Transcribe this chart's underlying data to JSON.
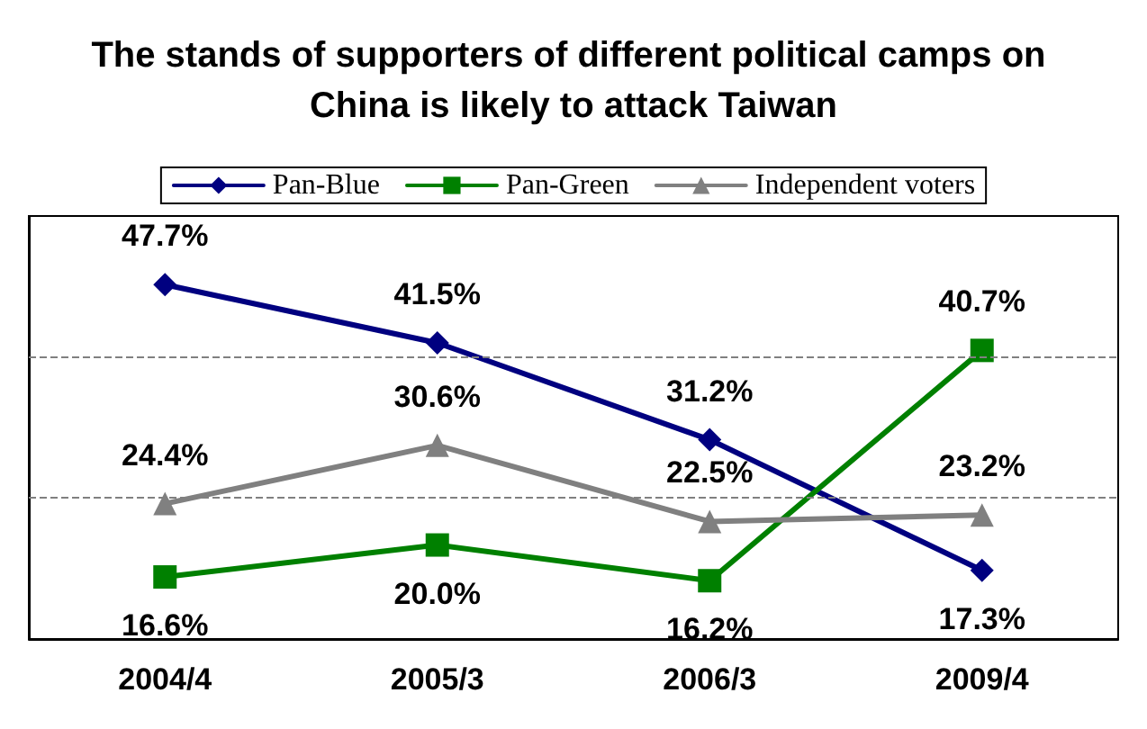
{
  "chart_data": {
    "type": "line",
    "title": "The stands of supporters of different political camps on China is likely to attack Taiwan",
    "categories": [
      "2004/4",
      "2005/3",
      "2006/3",
      "2009/4"
    ],
    "series": [
      {
        "name": "Pan-Blue",
        "color": "#000080",
        "marker": "diamond",
        "values": [
          47.7,
          41.5,
          31.2,
          17.3
        ],
        "value_labels": [
          "47.7%",
          "41.5%",
          "31.2%",
          "17.3%"
        ]
      },
      {
        "name": "Pan-Green",
        "color": "#008000",
        "marker": "square",
        "values": [
          16.6,
          20.0,
          16.2,
          40.7
        ],
        "value_labels": [
          "16.6%",
          "20.0%",
          "16.2%",
          "40.7%"
        ]
      },
      {
        "name": "Independent voters",
        "color": "#808080",
        "marker": "triangle",
        "values": [
          24.4,
          30.6,
          22.5,
          23.2
        ],
        "value_labels": [
          "24.4%",
          "30.6%",
          "22.5%",
          "23.2%"
        ]
      }
    ],
    "ylim": [
      10,
      55
    ],
    "ref_lines": [
      {
        "axis": "y",
        "value": 25,
        "color": "#808080",
        "line_style": "dashed"
      },
      {
        "axis": "y",
        "value": 40,
        "color": "#808080",
        "line_style": "dashed"
      }
    ],
    "legend": "top",
    "tick_labels": "x",
    "line_style": "solid"
  }
}
